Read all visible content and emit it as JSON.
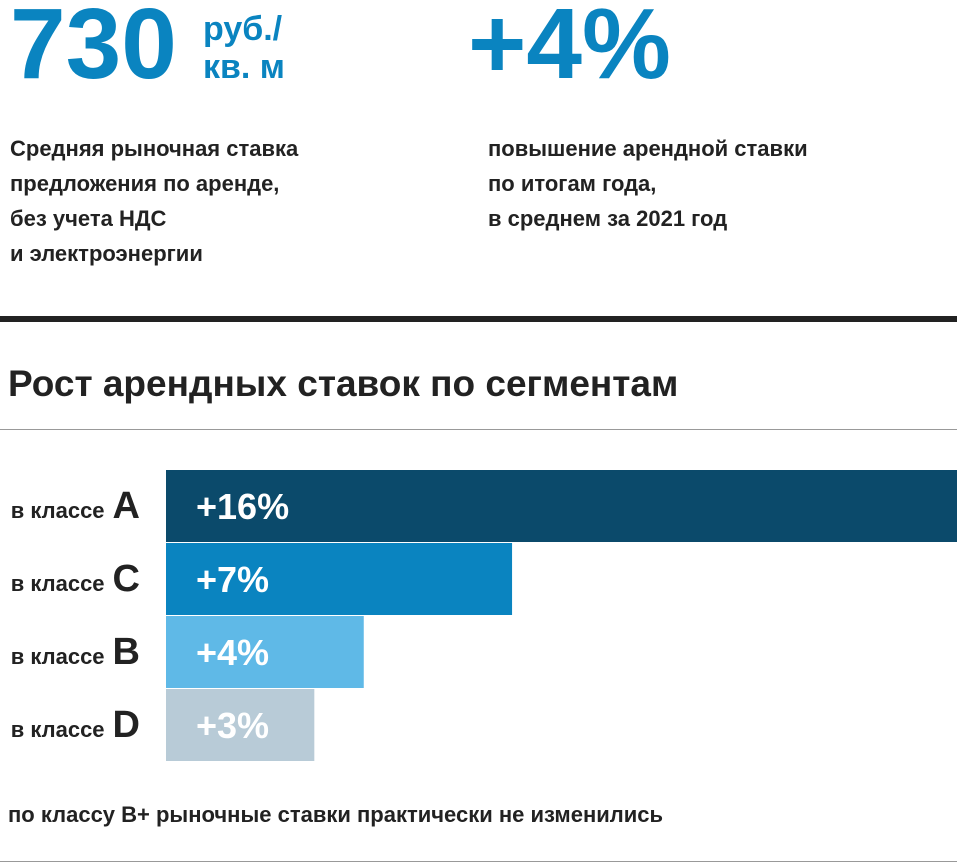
{
  "kpis": [
    {
      "value": 730,
      "unit": [
        "руб./",
        "кв. м"
      ],
      "description": [
        "Средняя рыночная ставка",
        "предложения по аренде,",
        "без учета НДС",
        "и электроэнергии"
      ]
    },
    {
      "value": "+4%",
      "description": [
        "повышение арендной ставки",
        "по итогам года,",
        "в среднем за 2021 год"
      ]
    }
  ],
  "chart_data": {
    "type": "barh",
    "title": "Рост арендных ставок по сегментам",
    "category_prefix": "в классе",
    "categories": [
      "A",
      "C",
      "B",
      "D"
    ],
    "values": [
      16,
      7,
      4,
      3
    ],
    "value_labels": [
      "+16%",
      "+7%",
      "+4%",
      "+3%"
    ],
    "colors": [
      "#0b4a6b",
      "#0a84c0",
      "#5fb9e7",
      "#b8cbd7"
    ],
    "xlim": [
      0,
      16
    ],
    "note": "по классу B+ рыночные ставки практически не изменились"
  }
}
